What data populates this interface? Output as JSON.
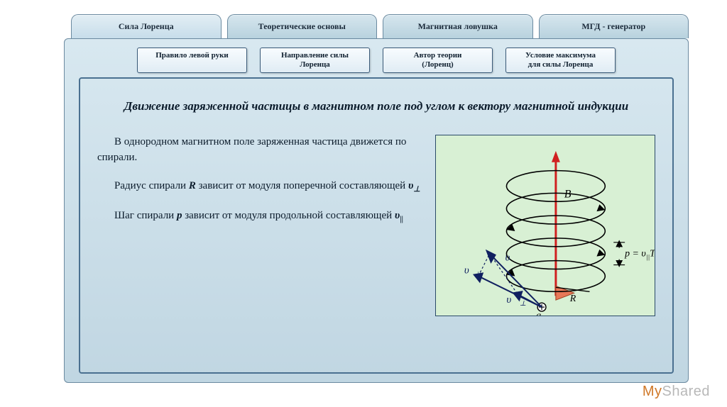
{
  "tabs": [
    {
      "label": "Сила  Лоренца",
      "active": true
    },
    {
      "label": "Теоретические основы",
      "active": false
    },
    {
      "label": "Магнитная ловушка",
      "active": false
    },
    {
      "label": "МГД - генератор",
      "active": false
    }
  ],
  "subtabs": [
    "Правило левой руки",
    "Направление силы\nЛоренца",
    "Автор теории\n(Лоренц)",
    "Условие максимума\nдля силы Лоренца"
  ],
  "title": "Движение заряженной частицы в магнитном поле под углом к  вектору магнитной индукции",
  "para1_a": "В однородном магнитном поле заряженная частица движется по спирали.",
  "para2_a": "Радиус спирали ",
  "para2_var": "R",
  "para2_b": " зависит от модуля поперечной составляющей ",
  "para2_sym": "υ",
  "para2_sub": "⊥",
  "para3_a": "Шаг спирали ",
  "para3_var": "p",
  "para3_b": "  зависит от модуля продольной составляющей ",
  "para3_sym": "υ",
  "para3_sub": "||",
  "fig": {
    "bg": "#d8f0d4",
    "helix_color": "#000000",
    "helix_width": 1.6,
    "axis_color": "#d02020",
    "axis_width": 3,
    "vec_color": "#102060",
    "label_B": "B",
    "label_v": "υ",
    "label_vpar": "υ",
    "label_vperp": "υ",
    "label_R": "R",
    "label_q": "q",
    "label_p": "p = υ",
    "label_p_suffix": "T",
    "sub_par": "||",
    "sub_perp": "⊥"
  },
  "watermark": {
    "a": "My",
    "b": "Shared"
  },
  "colors": {
    "panel_top": "#d8e8f0",
    "panel_bot": "#c0d6e2",
    "tab_border": "#6b8aa0",
    "inner_border": "#4a7090"
  }
}
